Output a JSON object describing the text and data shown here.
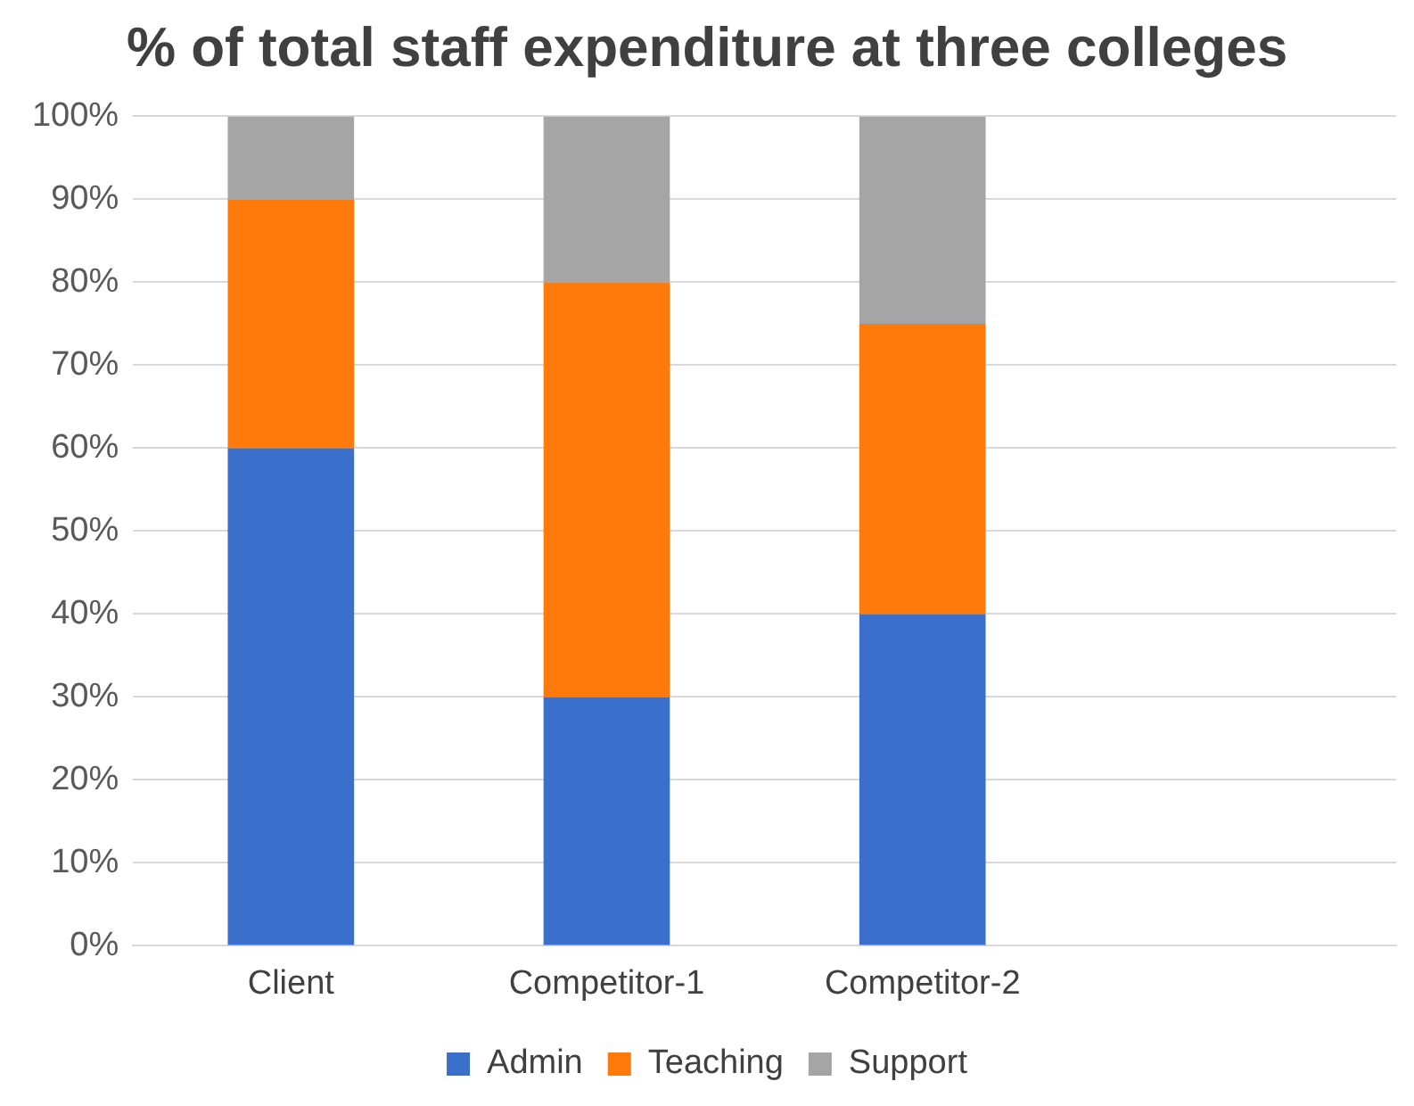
{
  "chart_data": {
    "type": "bar",
    "title": "% of total staff expenditure at three colleges",
    "categories": [
      "Client",
      "Competitor-1",
      "Competitor-2",
      null
    ],
    "series": [
      {
        "name": "Admin",
        "color": "#3a6fcc",
        "values": [
          60,
          30,
          40,
          null
        ]
      },
      {
        "name": "Teaching",
        "color": "#ff7a0a",
        "values": [
          30,
          50,
          35,
          null
        ]
      },
      {
        "name": "Support",
        "color": "#a5a5a5",
        "values": [
          10,
          20,
          25,
          null
        ]
      }
    ],
    "stacked": true,
    "ylim": [
      0,
      100
    ],
    "yticks": [
      {
        "value": 0,
        "label": "0%"
      },
      {
        "value": 10,
        "label": "10%"
      },
      {
        "value": 20,
        "label": "20%"
      },
      {
        "value": 30,
        "label": "30%"
      },
      {
        "value": 40,
        "label": "40%"
      },
      {
        "value": 50,
        "label": "50%"
      },
      {
        "value": 60,
        "label": "60%"
      },
      {
        "value": 70,
        "label": "70%"
      },
      {
        "value": 80,
        "label": "80%"
      },
      {
        "value": 90,
        "label": "90%"
      },
      {
        "value": 100,
        "label": "100%"
      }
    ],
    "grid": "y",
    "legend": "bottom"
  }
}
